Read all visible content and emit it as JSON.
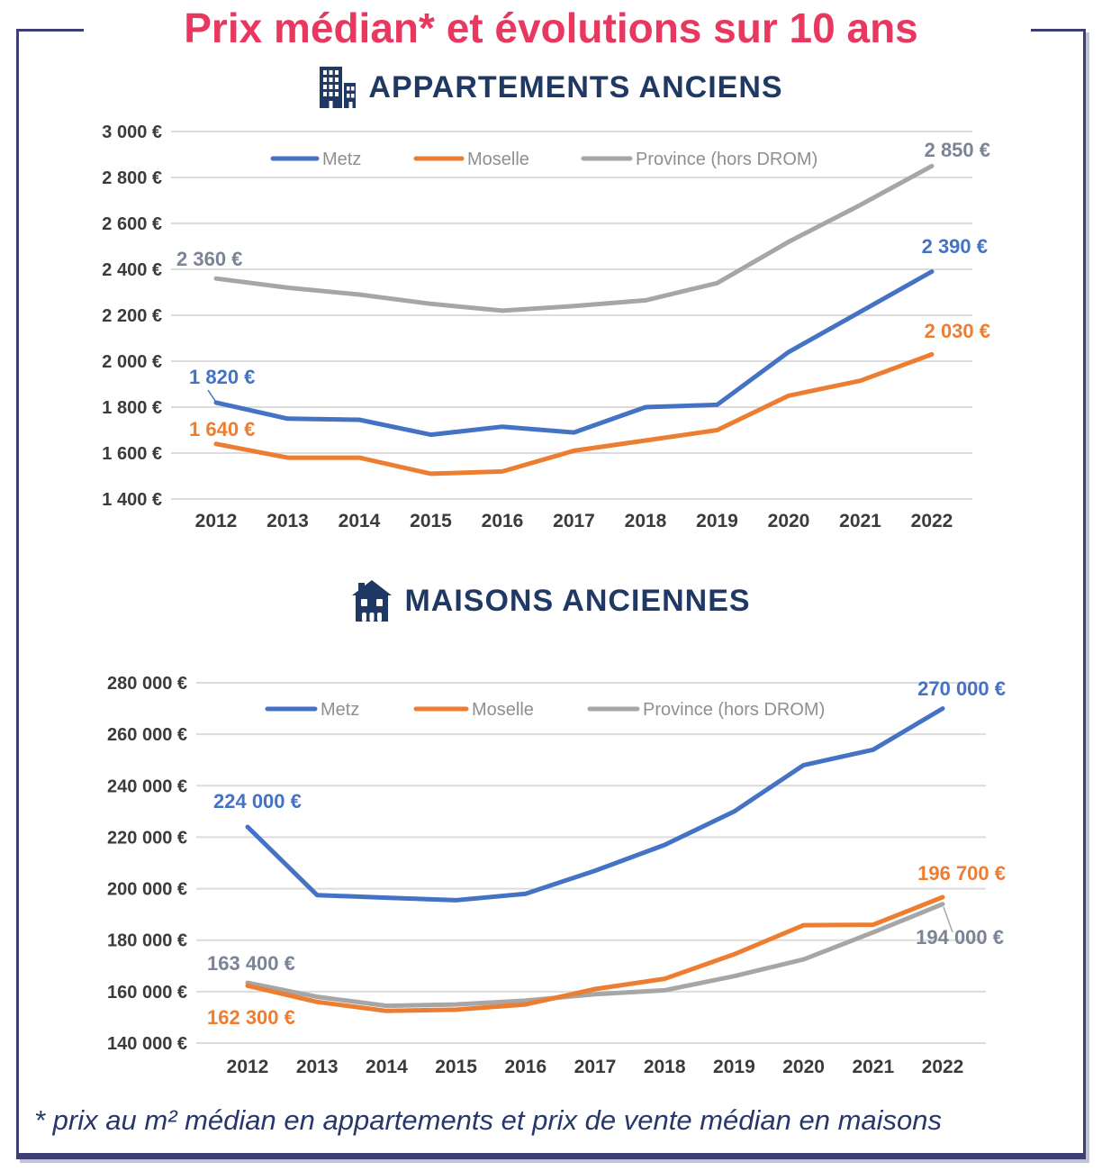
{
  "page": {
    "title": "Prix médian* et évolutions sur 10 ans",
    "footnote": "* prix au m² médian en appartements et prix de vente médian en maisons"
  },
  "colors": {
    "title_pink": "#e8385f",
    "navy": "#1f3864",
    "border_navy": "#3e3e73",
    "metz_blue": "#4472c4",
    "moselle_orange": "#ed7d31",
    "province_gray": "#a6a6a6",
    "gray_label": "#7b8496",
    "grid_gray": "#dcdcdc",
    "axis_text": "#3b3b3b"
  },
  "chart_data": [
    {
      "id": "appartements",
      "type": "line",
      "title": "APPARTEMENTS ANCIENS",
      "icon": "building-icon",
      "unit": "€/m²",
      "categories": [
        "2012",
        "2013",
        "2014",
        "2015",
        "2016",
        "2017",
        "2018",
        "2019",
        "2020",
        "2021",
        "2022"
      ],
      "ylim": [
        1400,
        3000
      ],
      "y_step": 200,
      "grid": true,
      "legend_position": "top-inside",
      "y_ticks": [
        "3 000 €",
        "2 800 €",
        "2 600 €",
        "2 400 €",
        "2 200 €",
        "2 000 €",
        "1 800 €",
        "1 600 €",
        "1 400 €"
      ],
      "series": [
        {
          "name": "Metz",
          "color": "#4472c4",
          "values": [
            1820,
            1750,
            1745,
            1680,
            1715,
            1690,
            1800,
            1810,
            2040,
            2215,
            2390
          ],
          "start_label": "1 820 €",
          "end_label": "2 390 €"
        },
        {
          "name": "Moselle",
          "color": "#ed7d31",
          "values": [
            1640,
            1580,
            1580,
            1510,
            1520,
            1610,
            1655,
            1700,
            1850,
            1915,
            2030
          ],
          "start_label": "1 640 €",
          "end_label": "2 030 €"
        },
        {
          "name": "Province (hors DROM)",
          "color": "#a6a6a6",
          "label_color": "#7b8496",
          "values": [
            2360,
            2320,
            2290,
            2250,
            2220,
            2240,
            2265,
            2340,
            2520,
            2680,
            2850
          ],
          "start_label": "2 360 €",
          "end_label": "2 850 €"
        }
      ]
    },
    {
      "id": "maisons",
      "type": "line",
      "title": "MAISONS ANCIENNES",
      "icon": "house-icon",
      "unit": "€",
      "categories": [
        "2012",
        "2013",
        "2014",
        "2015",
        "2016",
        "2017",
        "2018",
        "2019",
        "2020",
        "2021",
        "2022"
      ],
      "ylim": [
        140000,
        280000
      ],
      "y_step": 20000,
      "grid": true,
      "legend_position": "top-inside",
      "y_ticks": [
        "280 000 €",
        "260 000 €",
        "240 000 €",
        "220 000 €",
        "200 000 €",
        "180 000 €",
        "160 000 €",
        "140 000 €"
      ],
      "series": [
        {
          "name": "Metz",
          "color": "#4472c4",
          "values": [
            224000,
            197500,
            196500,
            195500,
            198000,
            207000,
            217000,
            230000,
            248000,
            254000,
            270000
          ],
          "start_label": "224 000 €",
          "end_label": "270 000 €"
        },
        {
          "name": "Moselle",
          "color": "#ed7d31",
          "values": [
            162300,
            156000,
            152500,
            153000,
            155000,
            161000,
            165000,
            174500,
            185800,
            186000,
            196700
          ],
          "start_label": "162 300 €",
          "end_label": "196 700 €"
        },
        {
          "name": "Province (hors DROM)",
          "color": "#a6a6a6",
          "label_color": "#7b8496",
          "values": [
            163400,
            158000,
            154500,
            155000,
            156500,
            159000,
            160500,
            166000,
            172500,
            183000,
            194000
          ],
          "start_label": "163 400 €",
          "end_label": "194 000 €"
        }
      ]
    }
  ]
}
